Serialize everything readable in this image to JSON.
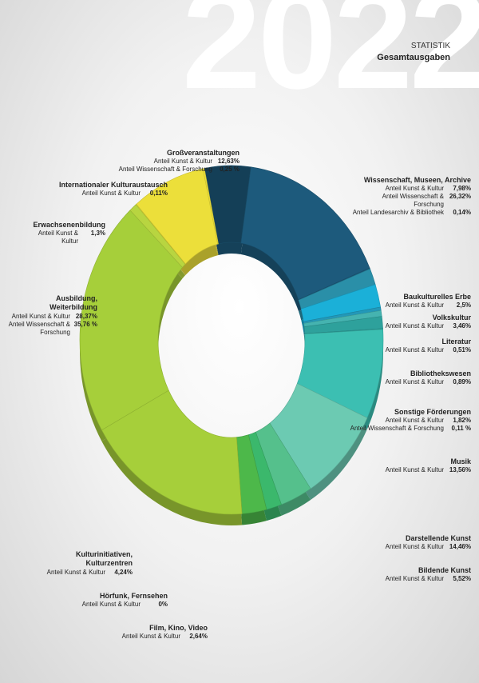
{
  "chart_data": {
    "type": "donut",
    "title": "2022",
    "kicker": "STATISTIK",
    "subtitle": "Gesamtausgaben",
    "segments": [
      {
        "name": "Wissenschaft, Museen, Archive",
        "color": "#1d5a7c",
        "shares": [
          {
            "label": "Anteil Kunst & Kultur",
            "value": 7.98,
            "value_label": "7,98%"
          },
          {
            "label": "Anteil Wissenschaft & Forschung",
            "value": 26.32,
            "value_label": "26,32%"
          },
          {
            "label": "Anteil Landesarchiv & Bibliothek",
            "value": 0.14,
            "value_label": "0,14%"
          }
        ]
      },
      {
        "name": "Baukulturelles Erbe",
        "color": "#2a8fa8",
        "shares": [
          {
            "label": "Anteil Kunst & Kultur",
            "value": 2.5,
            "value_label": "2,5%"
          }
        ]
      },
      {
        "name": "Volkskultur",
        "color": "#1bb0d8",
        "shares": [
          {
            "label": "Anteil Kunst & Kultur",
            "value": 3.46,
            "value_label": "3,46%"
          }
        ]
      },
      {
        "name": "Literatur",
        "color": "#2398b8",
        "shares": [
          {
            "label": "Anteil Kunst & Kultur",
            "value": 0.51,
            "value_label": "0,51%"
          }
        ]
      },
      {
        "name": "Bibliothekswesen",
        "color": "#45b3b0",
        "shares": [
          {
            "label": "Anteil Kunst & Kultur",
            "value": 0.89,
            "value_label": "0,89%"
          }
        ]
      },
      {
        "name": "Sonstige Förderungen",
        "color": "#2ea19c",
        "shares": [
          {
            "label": "Anteil Kunst & Kultur",
            "value": 1.82,
            "value_label": "1,82%"
          },
          {
            "label": "Anteil Wissenschaft & Forschung",
            "value": 0.11,
            "value_label": "0,11 %"
          }
        ]
      },
      {
        "name": "Musik",
        "color": "#3cbfb2",
        "shares": [
          {
            "label": "Anteil Kunst & Kultur",
            "value": 13.56,
            "value_label": "13,56%"
          }
        ]
      },
      {
        "name": "Darstellende Kunst",
        "color": "#6ccab2",
        "shares": [
          {
            "label": "Anteil Kunst & Kultur",
            "value": 14.46,
            "value_label": "14,46%"
          }
        ]
      },
      {
        "name": "Bildende Kunst",
        "color": "#55c08c",
        "shares": [
          {
            "label": "Anteil Kunst & Kultur",
            "value": 5.52,
            "value_label": "5,52%"
          }
        ]
      },
      {
        "name": "Film, Kino, Video",
        "color": "#3bb86c",
        "shares": [
          {
            "label": "Anteil Kunst & Kultur",
            "value": 2.64,
            "value_label": "2,64%"
          }
        ]
      },
      {
        "name": "Hörfunk, Fernsehen",
        "color": "#3bb86c",
        "shares": [
          {
            "label": "Anteil Kunst & Kultur",
            "value": 0,
            "value_label": "0%"
          }
        ]
      },
      {
        "name": "Kulturinitiativen, Kulturzentren",
        "color": "#4db84a",
        "shares": [
          {
            "label": "Anteil Kunst & Kultur",
            "value": 4.24,
            "value_label": "4,24%"
          }
        ]
      },
      {
        "name": "Ausbildung, Weiterbildung",
        "color": "#a6cf3a",
        "shares": [
          {
            "label": "Anteil Kunst & Kultur",
            "value": 28.37,
            "value_label": "28,37%"
          },
          {
            "label": "Anteil Wissenschaft & Forschung",
            "value": 35.76,
            "value_label": "35,76 %"
          }
        ]
      },
      {
        "name": "Erwachsenenbildung",
        "color": "#b8d540",
        "shares": [
          {
            "label": "Anteil Kunst & Kultur",
            "value": 1.3,
            "value_label": "1,3%"
          }
        ]
      },
      {
        "name": "Internationaler Kulturaustausch",
        "color": "#cdda3a",
        "shares": [
          {
            "label": "Anteil Kunst & Kultur",
            "value": 0.11,
            "value_label": "0,11%"
          }
        ]
      },
      {
        "name": "Großveranstaltungen",
        "color": "#ecdf3a",
        "shares": [
          {
            "label": "Anteil Kunst & Kultur",
            "value": 12.63,
            "value_label": "12,63%"
          },
          {
            "label": "Anteil Wissenschaft & Forschung",
            "value": 0.25,
            "value_label": "0,25 %"
          }
        ]
      }
    ]
  }
}
